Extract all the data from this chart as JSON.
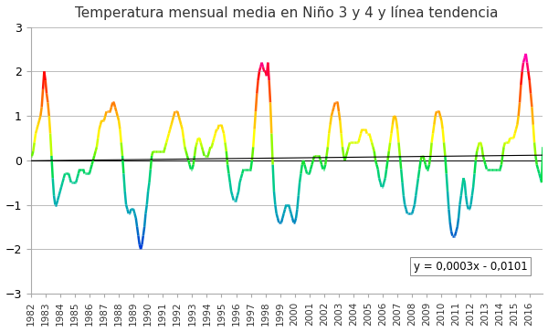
{
  "title": "Temperatura mensual media en Niño 3 y 4 y línea tendencia",
  "title_fontsize": 11,
  "ylim": [
    -3,
    3
  ],
  "yticks": [
    -3,
    -2,
    -1,
    0,
    1,
    2,
    3
  ],
  "trend_label": "y = 0,0003x - 0,0101",
  "background_color": "#ffffff",
  "grid_color": "#bbbbbb",
  "trend_color": "#000000",
  "start_year": 1982,
  "end_year": 2016,
  "figsize": [
    6.0,
    3.63
  ],
  "dpi": 100,
  "vmin": -2.5,
  "vmax": 2.5,
  "linewidth": 1.8,
  "nino34": [
    0.1,
    0.1,
    0.2,
    0.4,
    0.6,
    0.7,
    0.8,
    0.9,
    1.0,
    1.2,
    1.6,
    2.0,
    1.8,
    1.5,
    1.3,
    1.0,
    0.6,
    0.1,
    -0.4,
    -0.8,
    -1.0,
    -1.0,
    -0.9,
    -0.8,
    -0.7,
    -0.6,
    -0.5,
    -0.4,
    -0.3,
    -0.3,
    -0.3,
    -0.3,
    -0.4,
    -0.5,
    -0.5,
    -0.5,
    -0.5,
    -0.5,
    -0.4,
    -0.3,
    -0.2,
    -0.2,
    -0.2,
    -0.2,
    -0.3,
    -0.3,
    -0.3,
    -0.3,
    -0.3,
    -0.2,
    -0.1,
    0.0,
    0.1,
    0.2,
    0.3,
    0.5,
    0.7,
    0.8,
    0.9,
    0.9,
    0.9,
    1.0,
    1.1,
    1.1,
    1.1,
    1.1,
    1.2,
    1.3,
    1.3,
    1.2,
    1.1,
    1.0,
    0.9,
    0.7,
    0.4,
    0.1,
    -0.3,
    -0.7,
    -1.0,
    -1.1,
    -1.2,
    -1.2,
    -1.1,
    -1.1,
    -1.1,
    -1.2,
    -1.3,
    -1.5,
    -1.7,
    -1.9,
    -2.0,
    -1.9,
    -1.7,
    -1.5,
    -1.2,
    -1.0,
    -0.7,
    -0.5,
    -0.2,
    0.1,
    0.2,
    0.2,
    0.2,
    0.2,
    0.2,
    0.2,
    0.2,
    0.2,
    0.2,
    0.2,
    0.3,
    0.4,
    0.5,
    0.6,
    0.7,
    0.8,
    0.9,
    1.0,
    1.1,
    1.1,
    1.1,
    1.0,
    0.9,
    0.8,
    0.7,
    0.5,
    0.3,
    0.2,
    0.1,
    0.0,
    -0.1,
    -0.2,
    -0.2,
    -0.1,
    0.1,
    0.3,
    0.4,
    0.5,
    0.5,
    0.4,
    0.3,
    0.2,
    0.1,
    0.1,
    0.1,
    0.1,
    0.2,
    0.3,
    0.3,
    0.4,
    0.5,
    0.6,
    0.7,
    0.7,
    0.8,
    0.8,
    0.8,
    0.7,
    0.6,
    0.4,
    0.2,
    -0.1,
    -0.3,
    -0.5,
    -0.7,
    -0.8,
    -0.9,
    -0.9,
    -0.9,
    -0.8,
    -0.7,
    -0.5,
    -0.4,
    -0.3,
    -0.2,
    -0.2,
    -0.2,
    -0.2,
    -0.2,
    -0.2,
    -0.2,
    0.0,
    0.3,
    0.7,
    1.1,
    1.5,
    1.8,
    2.0,
    2.1,
    2.2,
    2.1,
    2.0,
    2.0,
    1.9,
    2.2,
    1.8,
    1.3,
    0.6,
    -0.1,
    -0.7,
    -1.0,
    -1.2,
    -1.3,
    -1.4,
    -1.4,
    -1.4,
    -1.3,
    -1.2,
    -1.1,
    -1.0,
    -1.0,
    -1.0,
    -1.1,
    -1.2,
    -1.3,
    -1.4,
    -1.4,
    -1.3,
    -1.1,
    -0.8,
    -0.5,
    -0.3,
    -0.1,
    0.0,
    -0.1,
    -0.2,
    -0.3,
    -0.3,
    -0.3,
    -0.2,
    -0.1,
    0.0,
    0.1,
    0.1,
    0.1,
    0.1,
    0.1,
    0.0,
    -0.1,
    -0.2,
    -0.2,
    -0.1,
    0.1,
    0.3,
    0.6,
    0.8,
    1.0,
    1.1,
    1.2,
    1.3,
    1.3,
    1.3,
    1.1,
    0.9,
    0.6,
    0.3,
    0.1,
    0.0,
    0.1,
    0.2,
    0.3,
    0.4,
    0.4,
    0.4,
    0.4,
    0.4,
    0.4,
    0.4,
    0.4,
    0.5,
    0.6,
    0.7,
    0.7,
    0.7,
    0.7,
    0.6,
    0.6,
    0.6,
    0.5,
    0.4,
    0.3,
    0.2,
    0.0,
    -0.1,
    -0.2,
    -0.4,
    -0.5,
    -0.6,
    -0.6,
    -0.5,
    -0.4,
    -0.2,
    0.0,
    0.2,
    0.4,
    0.6,
    0.8,
    1.0,
    1.0,
    0.9,
    0.7,
    0.4,
    0.1,
    -0.2,
    -0.5,
    -0.8,
    -1.0,
    -1.1,
    -1.2,
    -1.2,
    -1.2,
    -1.2,
    -1.2,
    -1.1,
    -1.0,
    -0.8,
    -0.6,
    -0.4,
    -0.2,
    0.0,
    0.1,
    0.1,
    0.0,
    -0.1,
    -0.2,
    -0.2,
    -0.1,
    0.1,
    0.4,
    0.6,
    0.8,
    1.0,
    1.1,
    1.1,
    1.1,
    1.0,
    0.9,
    0.7,
    0.4,
    0.1,
    -0.3,
    -0.7,
    -1.1,
    -1.4,
    -1.6,
    -1.7,
    -1.7,
    -1.7,
    -1.6,
    -1.5,
    -1.3,
    -1.0,
    -0.8,
    -0.6,
    -0.4,
    -0.5,
    -0.8,
    -1.0,
    -1.1,
    -1.1,
    -1.0,
    -0.8,
    -0.6,
    -0.3,
    0.0,
    0.2,
    0.3,
    0.4,
    0.4,
    0.3,
    0.1,
    0.0,
    -0.1,
    -0.2,
    -0.2,
    -0.2,
    -0.2,
    -0.2,
    -0.2,
    -0.2,
    -0.2,
    -0.2,
    -0.2,
    -0.2,
    -0.2,
    -0.1,
    0.1,
    0.3,
    0.4,
    0.4,
    0.4,
    0.4,
    0.5,
    0.5,
    0.5,
    0.5,
    0.6,
    0.7,
    0.8,
    1.0,
    1.3,
    1.7,
    2.0,
    2.2,
    2.3,
    2.4,
    2.2,
    2.0,
    1.8,
    1.5,
    1.2,
    0.8,
    0.4,
    0.1,
    -0.1,
    -0.2,
    -0.3,
    -0.4,
    -0.5,
    0.3
  ]
}
